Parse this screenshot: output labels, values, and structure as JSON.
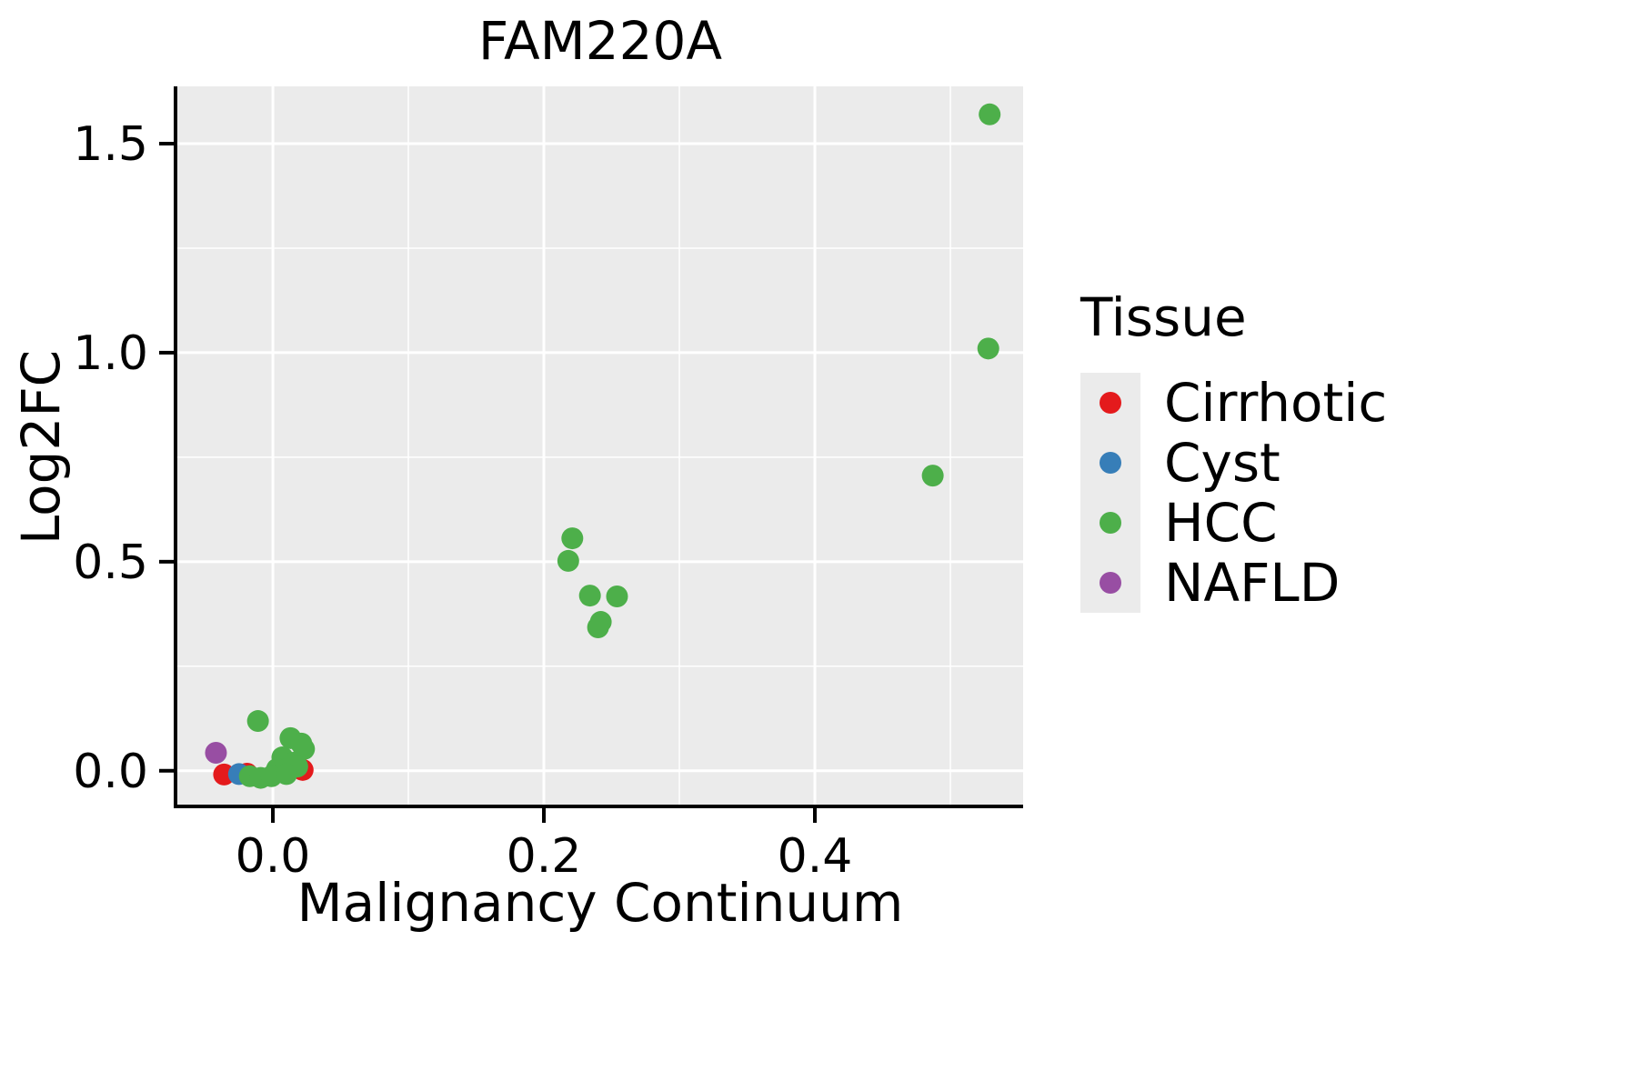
{
  "chart_data": {
    "type": "scatter",
    "title": "FAM220A",
    "xlabel": "Malignancy Continuum",
    "ylabel": "Log2FC",
    "xlim": [
      -0.0705,
      0.5537
    ],
    "ylim": [
      -0.081,
      1.637
    ],
    "xticks": [
      0.0,
      0.2,
      0.4
    ],
    "yticks": [
      0.0,
      0.5,
      1.0,
      1.5
    ],
    "xtick_labels": [
      "0.0",
      "0.2",
      "0.4"
    ],
    "ytick_labels": [
      "0.0",
      "0.5",
      "1.0",
      "1.5"
    ],
    "xticks_minor": [
      0.1,
      0.3,
      0.5
    ],
    "yticks_minor": [
      0.25,
      0.75,
      1.25
    ],
    "grid": true,
    "panel_background": "#ebebeb",
    "grid_color": "#ffffff",
    "axis_color": "#000000",
    "legend": {
      "title": "Tissue",
      "position": "right"
    },
    "series": [
      {
        "name": "Cirrhotic",
        "color": "#e41a1c",
        "points": [
          [
            -0.036,
            -0.009
          ],
          [
            -0.019,
            -0.007
          ],
          [
            0.022,
            0.002
          ]
        ]
      },
      {
        "name": "Cyst",
        "color": "#377eb8",
        "points": [
          [
            -0.025,
            -0.008
          ]
        ]
      },
      {
        "name": "HCC",
        "color": "#4daf4a",
        "points": [
          [
            0.529,
            1.57
          ],
          [
            0.528,
            1.01
          ],
          [
            0.487,
            0.706
          ],
          [
            0.221,
            0.556
          ],
          [
            0.218,
            0.502
          ],
          [
            0.234,
            0.419
          ],
          [
            0.254,
            0.417
          ],
          [
            0.242,
            0.356
          ],
          [
            0.24,
            0.343
          ],
          [
            -0.011,
            0.119
          ],
          [
            0.013,
            0.078
          ],
          [
            0.021,
            0.065
          ],
          [
            0.023,
            0.052
          ],
          [
            0.007,
            0.032
          ],
          [
            0.015,
            0.019
          ],
          [
            0.018,
            0.01
          ],
          [
            0.003,
            0.004
          ],
          [
            -0.017,
            -0.013
          ],
          [
            -0.009,
            -0.017
          ],
          [
            -0.001,
            -0.013
          ],
          [
            0.01,
            -0.008
          ]
        ]
      },
      {
        "name": "NAFLD",
        "color": "#984ea3",
        "points": [
          [
            -0.042,
            0.043
          ]
        ]
      }
    ]
  }
}
